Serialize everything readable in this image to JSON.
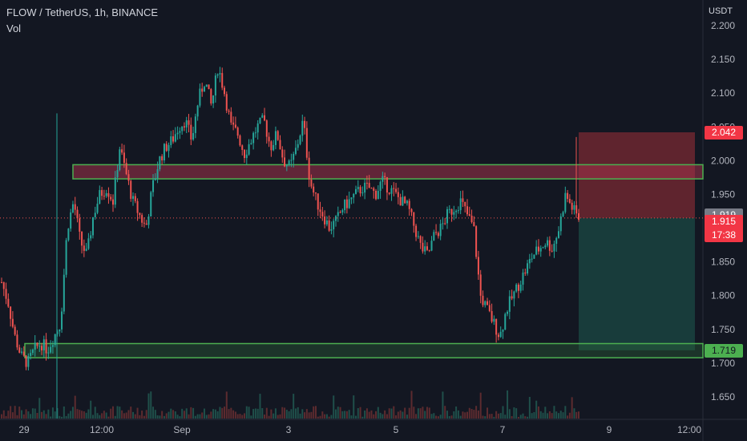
{
  "header": {
    "title": "FLOW / TetherUS, 1h, BINANCE",
    "volume_label": "Vol",
    "currency": "USDT"
  },
  "price_tags": {
    "stop": "2.042",
    "ask": "1.919",
    "last": "1.915",
    "countdown": "17:38",
    "target": "1.719"
  },
  "colors": {
    "background": "#131722",
    "up": "#26a69a",
    "down": "#ef5350",
    "zone_border": "#4caf50",
    "stop_zone": "#7a2a33",
    "target_zone": "#1b4a44",
    "axis_text": "#b2b5be"
  },
  "chart_data": {
    "type": "candlestick",
    "ylim": [
      1.625,
      2.21
    ],
    "y_ticks": [
      "2.200",
      "2.150",
      "2.100",
      "2.050",
      "2.000",
      "1.950",
      "1.900",
      "1.850",
      "1.800",
      "1.750",
      "1.700",
      "1.650"
    ],
    "x_ticks": [
      "29",
      "12:00",
      "Sep",
      "3",
      "5",
      "7",
      "9",
      "12:00"
    ],
    "resistance_zone": [
      1.973,
      1.994
    ],
    "support_zone": [
      1.708,
      1.729
    ],
    "short_position": {
      "entry": 1.915,
      "stop": 2.042,
      "target": 1.719
    },
    "last_price": 1.915,
    "ohlc_path": [
      1.82,
      1.79,
      1.74,
      1.71,
      1.7,
      1.72,
      1.73,
      1.72,
      1.74,
      1.76,
      1.9,
      1.94,
      1.88,
      1.86,
      1.92,
      1.95,
      1.96,
      1.94,
      2.02,
      1.98,
      1.94,
      1.92,
      1.9,
      1.96,
      2.0,
      2.02,
      2.03,
      2.05,
      2.06,
      2.03,
      2.09,
      2.12,
      2.08,
      2.14,
      2.1,
      2.05,
      2.04,
      2.01,
      2.03,
      2.05,
      2.06,
      2.02,
      2.04,
      2.0,
      1.99,
      2.02,
      2.06,
      1.97,
      1.94,
      1.92,
      1.9,
      1.91,
      1.93,
      1.94,
      1.95,
      1.96,
      1.96,
      1.95,
      1.97,
      1.96,
      1.95,
      1.94,
      1.93,
      1.9,
      1.87,
      1.86,
      1.89,
      1.9,
      1.92,
      1.93,
      1.94,
      1.92,
      1.9,
      1.8,
      1.78,
      1.76,
      1.74,
      1.78,
      1.8,
      1.82,
      1.84,
      1.86,
      1.87,
      1.88,
      1.87,
      1.9,
      1.95,
      1.93,
      1.915
    ]
  }
}
